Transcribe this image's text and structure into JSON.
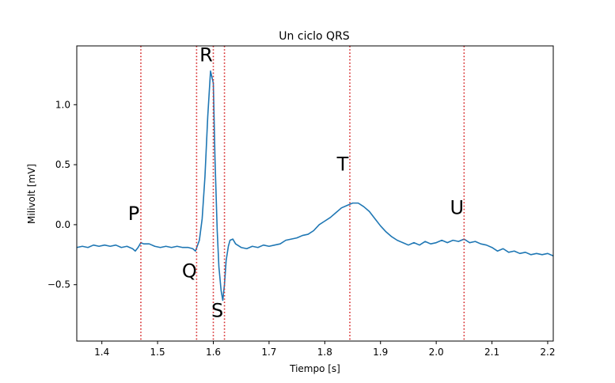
{
  "chart_data": {
    "type": "line",
    "title": "Un ciclo QRS",
    "xlabel": "Tiempo [s]",
    "ylabel": "Milivolt [mV]",
    "xlim": [
      1.355,
      2.21
    ],
    "ylim": [
      -0.97,
      1.49
    ],
    "xticks": [
      1.4,
      1.5,
      1.6,
      1.7,
      1.8,
      1.9,
      2.0,
      2.1,
      2.2
    ],
    "xtick_labels": [
      "1.4",
      "1.5",
      "1.6",
      "1.7",
      "1.8",
      "1.9",
      "2.0",
      "2.1",
      "2.2"
    ],
    "yticks": [
      -0.5,
      0.0,
      0.5,
      1.0
    ],
    "ytick_labels": [
      "−0.5",
      "0.0",
      "0.5",
      "1.0"
    ],
    "grid": false,
    "series": [
      {
        "name": "ECG",
        "color": "#1f77b4",
        "x": [
          1.355,
          1.365,
          1.375,
          1.385,
          1.395,
          1.405,
          1.415,
          1.425,
          1.435,
          1.445,
          1.455,
          1.46,
          1.465,
          1.47,
          1.475,
          1.485,
          1.495,
          1.505,
          1.515,
          1.525,
          1.535,
          1.545,
          1.555,
          1.563,
          1.568,
          1.575,
          1.58,
          1.585,
          1.59,
          1.595,
          1.6,
          1.603,
          1.607,
          1.61,
          1.614,
          1.617,
          1.62,
          1.623,
          1.627,
          1.63,
          1.635,
          1.64,
          1.65,
          1.66,
          1.67,
          1.68,
          1.69,
          1.7,
          1.71,
          1.72,
          1.73,
          1.74,
          1.75,
          1.76,
          1.77,
          1.78,
          1.79,
          1.8,
          1.81,
          1.82,
          1.83,
          1.84,
          1.85,
          1.86,
          1.87,
          1.88,
          1.89,
          1.9,
          1.91,
          1.92,
          1.93,
          1.94,
          1.95,
          1.96,
          1.97,
          1.98,
          1.99,
          2.0,
          2.01,
          2.02,
          2.03,
          2.04,
          2.05,
          2.06,
          2.07,
          2.08,
          2.09,
          2.1,
          2.11,
          2.12,
          2.13,
          2.14,
          2.15,
          2.16,
          2.17,
          2.18,
          2.19,
          2.2,
          2.21
        ],
        "y": [
          -0.19,
          -0.18,
          -0.19,
          -0.17,
          -0.18,
          -0.17,
          -0.18,
          -0.17,
          -0.19,
          -0.18,
          -0.2,
          -0.22,
          -0.19,
          -0.15,
          -0.16,
          -0.16,
          -0.18,
          -0.19,
          -0.18,
          -0.19,
          -0.18,
          -0.19,
          -0.19,
          -0.2,
          -0.22,
          -0.13,
          0.05,
          0.4,
          0.9,
          1.28,
          1.18,
          0.55,
          -0.05,
          -0.35,
          -0.55,
          -0.63,
          -0.5,
          -0.3,
          -0.18,
          -0.13,
          -0.12,
          -0.16,
          -0.19,
          -0.2,
          -0.18,
          -0.19,
          -0.17,
          -0.18,
          -0.17,
          -0.16,
          -0.13,
          -0.12,
          -0.11,
          -0.09,
          -0.08,
          -0.05,
          0.0,
          0.03,
          0.06,
          0.1,
          0.14,
          0.16,
          0.18,
          0.18,
          0.15,
          0.11,
          0.05,
          -0.01,
          -0.06,
          -0.1,
          -0.13,
          -0.15,
          -0.17,
          -0.15,
          -0.17,
          -0.14,
          -0.16,
          -0.15,
          -0.13,
          -0.15,
          -0.13,
          -0.14,
          -0.12,
          -0.15,
          -0.14,
          -0.16,
          -0.17,
          -0.19,
          -0.22,
          -0.2,
          -0.23,
          -0.22,
          -0.24,
          -0.23,
          -0.25,
          -0.24,
          -0.25,
          -0.24,
          -0.26
        ]
      }
    ],
    "vlines": [
      {
        "label": "P",
        "x": 1.47,
        "label_y": 0.04
      },
      {
        "label": "Q",
        "x": 1.57,
        "label_y": -0.44
      },
      {
        "label": "R",
        "x": 1.6,
        "label_y": 1.36
      },
      {
        "label": "S",
        "x": 1.62,
        "label_y": -0.77
      },
      {
        "label": "T",
        "x": 1.845,
        "label_y": 0.45
      },
      {
        "label": "U",
        "x": 2.05,
        "label_y": 0.09
      }
    ],
    "vline_color": "#d62728"
  }
}
